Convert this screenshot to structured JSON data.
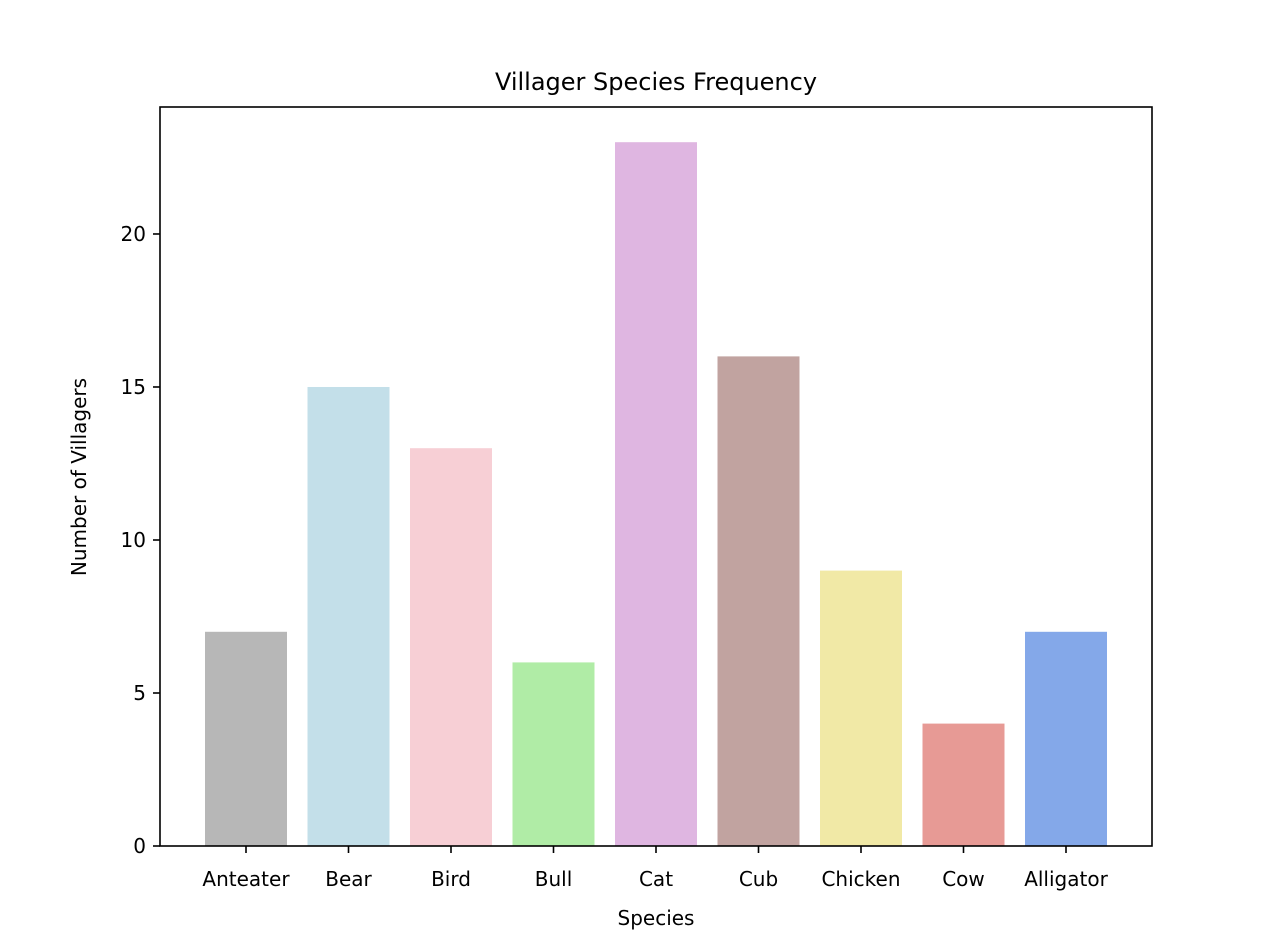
{
  "chart_data": {
    "type": "bar",
    "title": "Villager Species Frequency",
    "xlabel": "Species",
    "ylabel": "Number of Villagers",
    "categories": [
      "Anteater",
      "Bear",
      "Bird",
      "Bull",
      "Cat",
      "Cub",
      "Chicken",
      "Cow",
      "Alligator"
    ],
    "values": [
      7,
      15,
      13,
      6,
      23,
      16,
      9,
      4,
      7
    ],
    "colors": [
      "#b7b7b7",
      "#c3dfe9",
      "#f7cfd5",
      "#b0eca6",
      "#dfb6e1",
      "#c1a3a0",
      "#f1e9a6",
      "#e79a95",
      "#84a8e9"
    ],
    "ylim": [
      0,
      24.15
    ],
    "yticks": [
      0,
      5,
      10,
      15,
      20
    ],
    "grid": false,
    "legend": "none"
  }
}
